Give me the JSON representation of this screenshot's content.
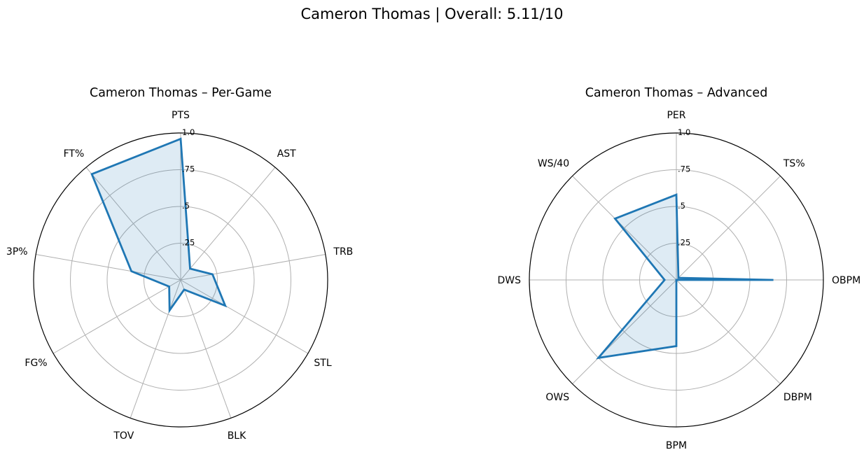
{
  "figure": {
    "title": "Cameron Thomas | Overall: 5.11/10"
  },
  "chart_data": [
    {
      "type": "radar",
      "title": "Cameron Thomas – Per-Game",
      "rlim": [
        0,
        1
      ],
      "radial_ticks": [
        ".25",
        ".5",
        ".75",
        "1.0"
      ],
      "radial_tick_values": [
        0.25,
        0.5,
        0.75,
        1.0
      ],
      "grid": true,
      "color": "#1f77b4",
      "categories": [
        "PTS",
        "AST",
        "TRB",
        "STL",
        "BLK",
        "TOV",
        "FG%",
        "3P%",
        "FT%"
      ],
      "values": [
        0.96,
        0.1,
        0.22,
        0.35,
        0.07,
        0.22,
        0.09,
        0.34,
        0.94
      ]
    },
    {
      "type": "radar",
      "title": "Cameron Thomas – Advanced",
      "rlim": [
        0,
        1
      ],
      "radial_ticks": [
        ".25",
        ".5",
        ".75",
        "1.0"
      ],
      "radial_tick_values": [
        0.25,
        0.5,
        0.75,
        1.0
      ],
      "grid": true,
      "color": "#1f77b4",
      "categories": [
        "PER",
        "TS%",
        "OBPM",
        "DBPM",
        "BPM",
        "OWS",
        "DWS",
        "WS/40"
      ],
      "values": [
        0.58,
        0.02,
        0.66,
        0.0,
        0.45,
        0.75,
        0.08,
        0.59
      ]
    }
  ]
}
